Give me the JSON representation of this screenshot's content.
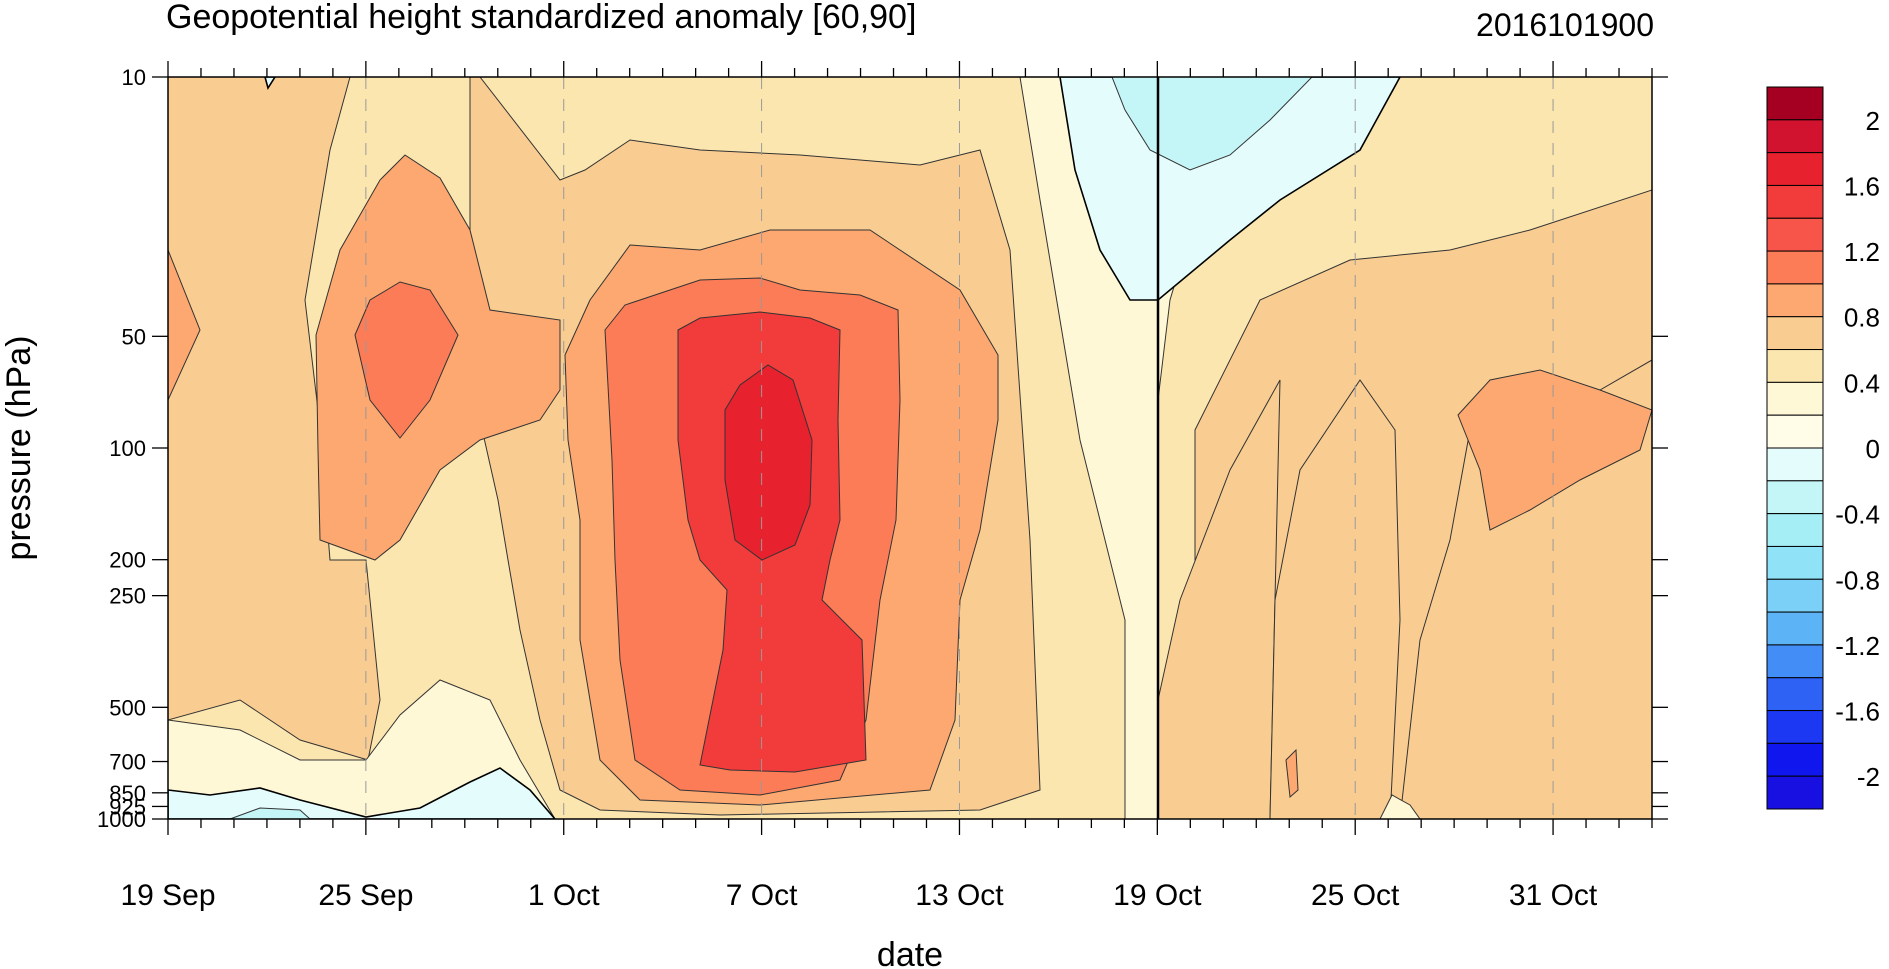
{
  "chart_data": {
    "type": "heatmap",
    "title": "Geopotential height standardized anomaly [60,90]",
    "timestamp": "2016101900",
    "xlabel": "date",
    "ylabel": "pressure (hPa)",
    "x_ticks": [
      "19 Sep",
      "25 Sep",
      "1 Oct",
      "7 Oct",
      "13 Oct",
      "19 Oct",
      "25 Oct",
      "31 Oct"
    ],
    "x_range": [
      "19 Sep",
      "3 Nov"
    ],
    "current_date": "19 Oct",
    "y_scale": "log",
    "y_reversed": true,
    "y_ticks": [
      "10",
      "50",
      "100",
      "200",
      "250",
      "500",
      "700",
      "850",
      "925",
      "1000"
    ],
    "y_range": [
      1000,
      10
    ],
    "colorbar": {
      "labels": [
        "2",
        "1.6",
        "1.2",
        "0.8",
        "0.4",
        "0",
        "-0.4",
        "-0.8",
        "-1.2",
        "-1.6",
        "-2"
      ],
      "colors": [
        "#a50021",
        "#d11330",
        "#e8212f",
        "#f23b3b",
        "#f8554a",
        "#fc7c58",
        "#fca870",
        "#f9cd92",
        "#fce6b0",
        "#fff8d6",
        "#fffde8",
        "#e4fcfc",
        "#c4f6f8",
        "#a6eef6",
        "#90e2f7",
        "#7ad0f7",
        "#5cb4f6",
        "#428ef6",
        "#2d62f5",
        "#1c38f3",
        "#0f16ee",
        "#1810e0"
      ]
    },
    "features": [
      {
        "name": "positive anomaly core",
        "date": "7 Oct",
        "pressure_range": [
          700,
          60
        ],
        "max_value": 1.6
      },
      {
        "name": "positive anomaly",
        "date": "26 Sep",
        "pressure_range": [
          100,
          40
        ],
        "max_value": 1.2
      },
      {
        "name": "negative anomaly",
        "date": "20 Oct",
        "pressure_range": [
          30,
          10
        ],
        "min_value": -0.4
      },
      {
        "name": "negative anomaly",
        "date": "27 Sep",
        "pressure_range": [
          1000,
          850
        ],
        "min_value": -0.4
      },
      {
        "name": "positive anomaly",
        "date": "31 Oct",
        "pressure_range": [
          150,
          65
        ],
        "max_value": 1.0
      }
    ]
  }
}
